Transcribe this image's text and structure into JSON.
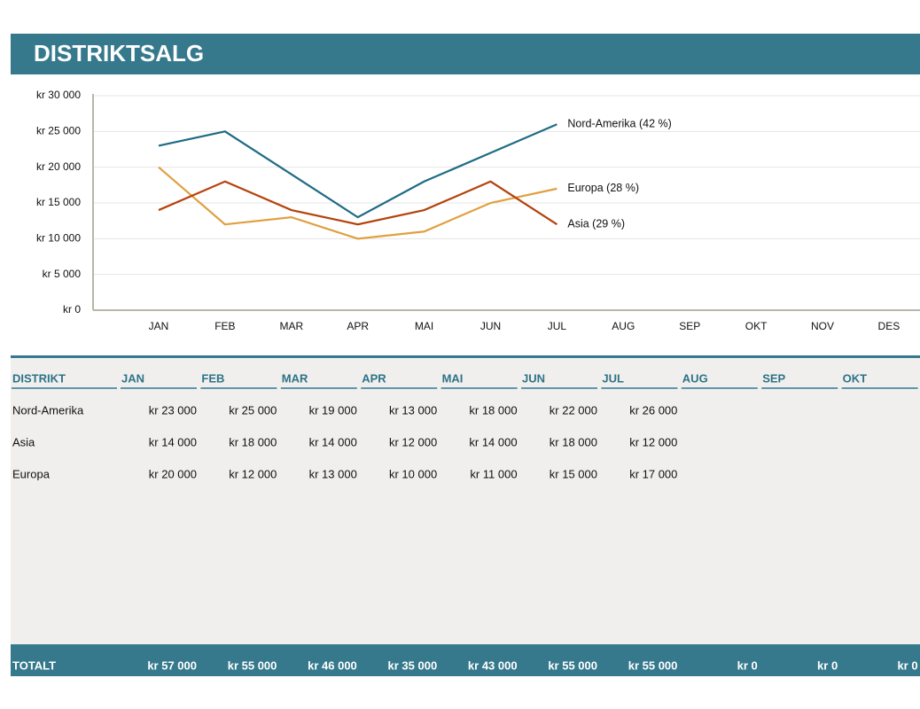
{
  "header": {
    "title": "DISTRIKTSALG"
  },
  "chart_data": {
    "type": "line",
    "categories": [
      "JAN",
      "FEB",
      "MAR",
      "APR",
      "MAI",
      "JUN",
      "JUL",
      "AUG",
      "SEP",
      "OKT",
      "NOV",
      "DES"
    ],
    "series": [
      {
        "name": "Nord-Amerika (42 %)",
        "color": "#1f6b84",
        "values": [
          23000,
          25000,
          19000,
          13000,
          18000,
          22000,
          26000,
          null,
          null,
          null,
          null,
          null
        ]
      },
      {
        "name": "Europa (28 %)",
        "color": "#e0a040",
        "values": [
          20000,
          12000,
          13000,
          10000,
          11000,
          15000,
          17000,
          null,
          null,
          null,
          null,
          null
        ]
      },
      {
        "name": "Asia (29 %)",
        "color": "#b5420c",
        "values": [
          14000,
          18000,
          14000,
          12000,
          14000,
          18000,
          12000,
          null,
          null,
          null,
          null,
          null
        ]
      }
    ],
    "ylim": [
      0,
      30000
    ],
    "yticks": [
      {
        "value": 0,
        "label": "kr 0"
      },
      {
        "value": 5000,
        "label": "kr 5 000"
      },
      {
        "value": 10000,
        "label": "kr 10 000"
      },
      {
        "value": 15000,
        "label": "kr 15 000"
      },
      {
        "value": 20000,
        "label": "kr 20 000"
      },
      {
        "value": 25000,
        "label": "kr 25 000"
      },
      {
        "value": 30000,
        "label": "kr 30 000"
      }
    ],
    "grid": true
  },
  "table": {
    "header": [
      "DISTRIKT",
      "JAN",
      "FEB",
      "MAR",
      "APR",
      "MAI",
      "JUN",
      "JUL",
      "AUG",
      "SEP",
      "OKT"
    ],
    "rows": [
      [
        "Nord-Amerika",
        "kr 23 000",
        "kr 25 000",
        "kr 19 000",
        "kr 13 000",
        "kr 18 000",
        "kr 22 000",
        "kr 26 000"
      ],
      [
        "Asia",
        "kr 14 000",
        "kr 18 000",
        "kr 14 000",
        "kr 12 000",
        "kr 14 000",
        "kr 18 000",
        "kr 12 000"
      ],
      [
        "Europa",
        "kr 20 000",
        "kr 12 000",
        "kr 13 000",
        "kr 10 000",
        "kr 11 000",
        "kr 15 000",
        "kr 17 000"
      ]
    ],
    "total": [
      "TOTALT",
      "kr 57 000",
      "kr 55 000",
      "kr 46 000",
      "kr 35 000",
      "kr 43 000",
      "kr 55 000",
      "kr 55 000",
      "kr 0",
      "kr 0",
      "kr 0"
    ]
  }
}
